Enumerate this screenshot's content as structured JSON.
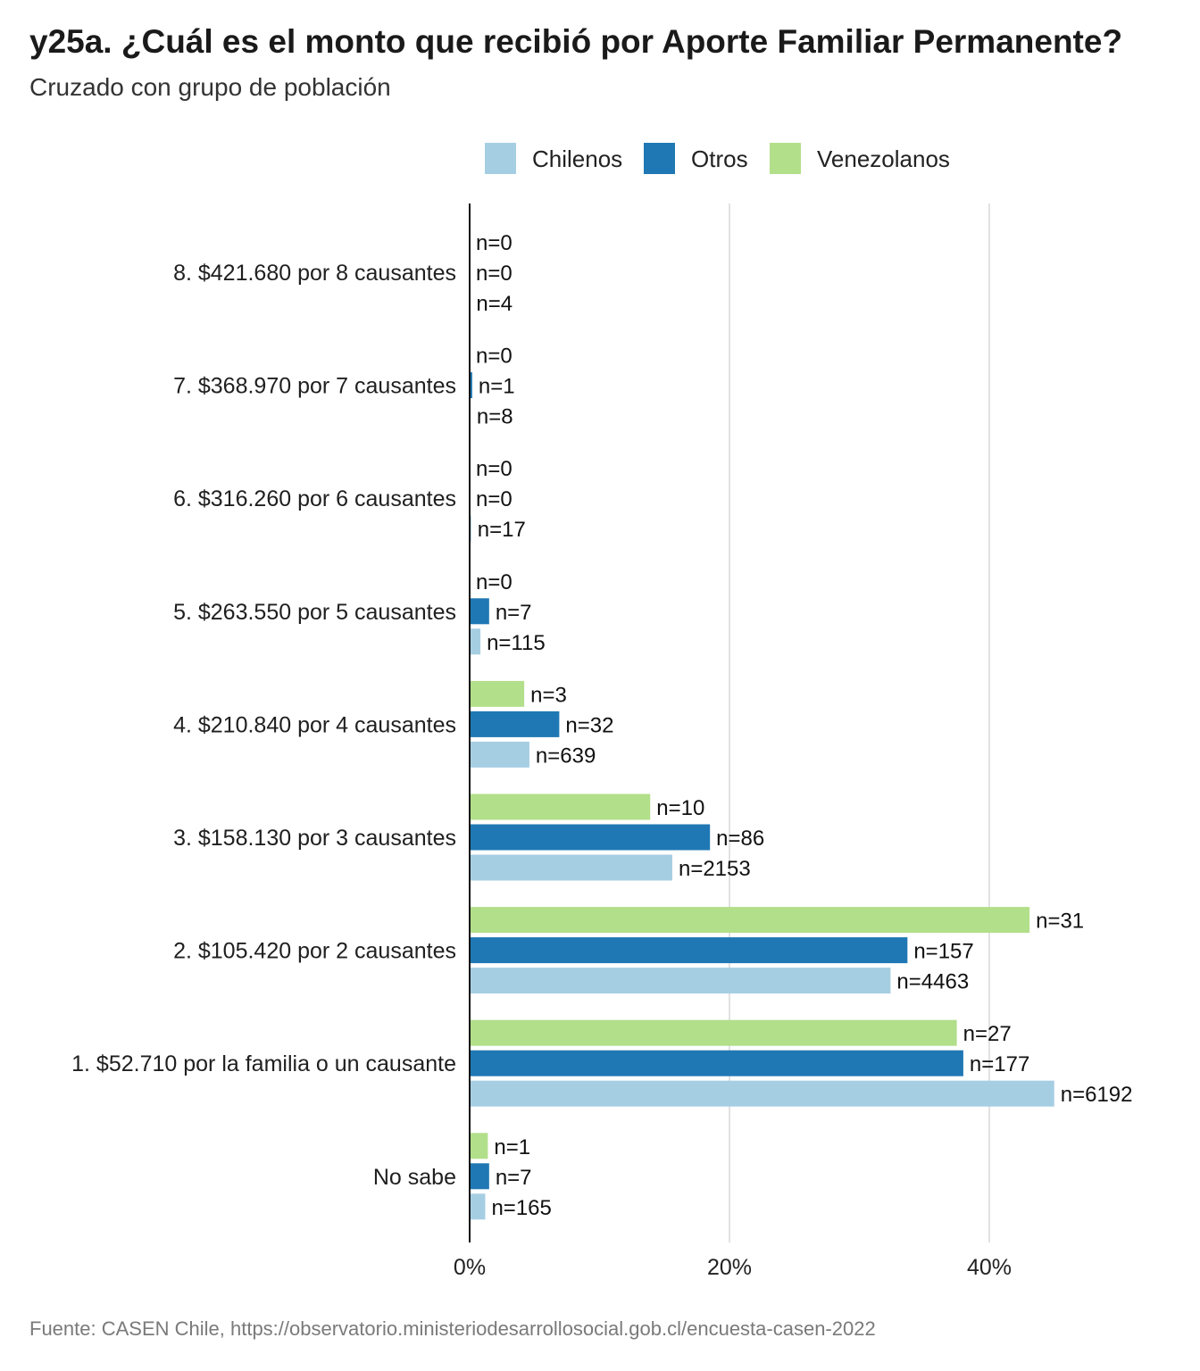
{
  "title": "y25a. ¿Cuál es el monto que recibió por Aporte Familiar Permanente?",
  "subtitle": "Cruzado con grupo de población",
  "caption": "Fuente: CASEN Chile, https://observatorio.ministeriodesarrollosocial.gob.cl/encuesta-casen-2022",
  "chart_data": {
    "type": "bar",
    "orientation": "horizontal",
    "xlim": [
      0,
      50
    ],
    "x_ticks": [
      0,
      20,
      40
    ],
    "x_tick_labels": [
      "0%",
      "20%",
      "40%"
    ],
    "grid": true,
    "legend_position": "top",
    "categories": [
      "8. $421.680 por 8 causantes",
      "7. $368.970 por 7 causantes",
      "6. $316.260 por 6 causantes",
      "5. $263.550 por 5 causantes",
      "4. $210.840 por 4 causantes",
      "3. $158.130 por 3 causantes",
      "2. $105.420 por 2 causantes",
      "1. $52.710 por la familia o un causante",
      "No sabe"
    ],
    "series": [
      {
        "name": "Venezolanos",
        "color": "#b2df8a",
        "values": [
          0,
          0,
          0,
          0,
          4.2,
          13.9,
          43.1,
          37.5,
          1.4
        ],
        "n_labels": [
          "n=0",
          "n=0",
          "n=0",
          "n=0",
          "n=3",
          "n=10",
          "n=31",
          "n=27",
          "n=1"
        ]
      },
      {
        "name": "Otros",
        "color": "#1f78b4",
        "values": [
          0,
          0.2,
          0,
          1.5,
          6.9,
          18.5,
          33.7,
          38.0,
          1.5
        ],
        "n_labels": [
          "n=0",
          "n=1",
          "n=0",
          "n=7",
          "n=32",
          "n=86",
          "n=157",
          "n=177",
          "n=7"
        ]
      },
      {
        "name": "Chilenos",
        "color": "#a6cee3",
        "values": [
          0.03,
          0.06,
          0.12,
          0.83,
          4.6,
          15.6,
          32.4,
          45.0,
          1.2
        ],
        "n_labels": [
          "n=4",
          "n=8",
          "n=17",
          "n=115",
          "n=639",
          "n=2153",
          "n=4463",
          "n=6192",
          "n=165"
        ]
      }
    ],
    "legend_order": [
      "Chilenos",
      "Otros",
      "Venezolanos"
    ]
  }
}
